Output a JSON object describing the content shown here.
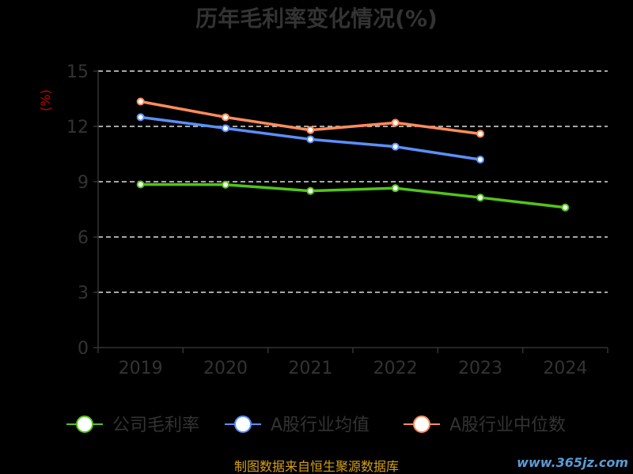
{
  "colors": {
    "background": "#000000",
    "axis": "#333333",
    "grid": "#dddddd",
    "ylabel": "#cc0000",
    "source": "#d4a017",
    "watermark": "#5b9bd5"
  },
  "footer": {
    "source": "制图数据来自恒生聚源数据库",
    "watermark": "www.365jz.com"
  },
  "chart_data": {
    "type": "line",
    "title": "历年毛利率变化情况(%)",
    "xlabel": "",
    "ylabel": "(%)",
    "categories": [
      "2019",
      "2020",
      "2021",
      "2022",
      "2023",
      "2024"
    ],
    "ylim": [
      0,
      15
    ],
    "yticks": [
      0,
      3,
      6,
      9,
      12,
      15
    ],
    "grid": true,
    "legend_position": "bottom",
    "series": [
      {
        "name": "公司毛利率",
        "color": "#52c41a",
        "values": [
          8.85,
          8.84,
          8.5,
          8.65,
          8.14,
          7.6
        ]
      },
      {
        "name": "A股行业均值",
        "color": "#5b8ff9",
        "values": [
          12.5,
          11.9,
          11.3,
          10.9,
          10.2,
          null
        ]
      },
      {
        "name": "A股行业中位数",
        "color": "#ff8c5a",
        "values": [
          13.35,
          12.5,
          11.8,
          12.2,
          11.6,
          null
        ]
      }
    ]
  }
}
